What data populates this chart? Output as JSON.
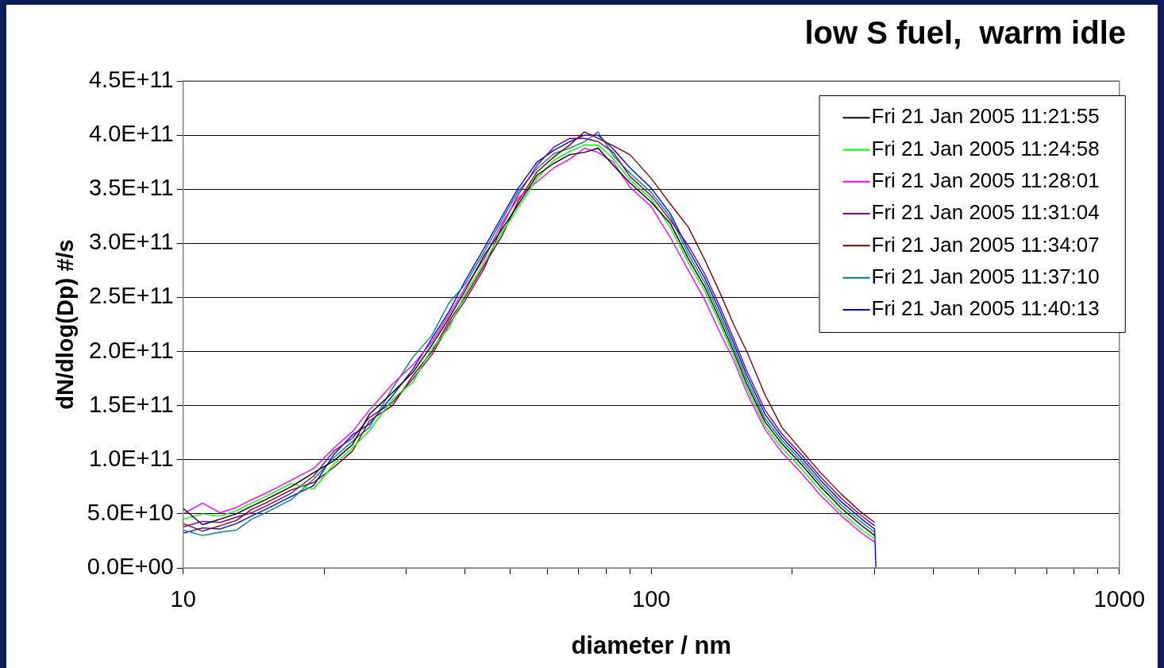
{
  "chart_data": {
    "type": "line",
    "title": "low S fuel,  warm idle",
    "xlabel": "diameter / nm",
    "ylabel": "dN/dlog(Dp) #/s",
    "x": [
      10,
      11,
      12,
      13,
      14,
      15,
      17,
      19,
      21,
      23,
      25,
      28,
      31,
      34,
      37,
      40,
      44,
      48,
      52,
      57,
      62,
      67,
      72,
      77,
      83,
      90,
      100,
      110,
      120,
      130,
      140,
      150,
      160,
      175,
      190,
      210,
      230,
      255,
      280,
      300,
      302
    ],
    "series": [
      {
        "name": "Fri 21 Jan 2005 11:21:55",
        "color": "#000000",
        "values": [
          55000000000.0,
          40000000000.0,
          45000000000.0,
          50000000000.0,
          57000000000.0,
          63000000000.0,
          75000000000.0,
          88000000000.0,
          99000000000.0,
          114000000000.0,
          142000000000.0,
          162000000000.0,
          181000000000.0,
          206000000000.0,
          231000000000.0,
          256000000000.0,
          289000000000.0,
          313000000000.0,
          336000000000.0,
          363000000000.0,
          374000000000.0,
          382000000000.0,
          384000000000.0,
          388000000000.0,
          372000000000.0,
          356000000000.0,
          338000000000.0,
          318000000000.0,
          286000000000.0,
          260000000000.0,
          230000000000.0,
          200000000000.0,
          170000000000.0,
          135000000000.0,
          115000000000.0,
          95000000000.0,
          75000000000.0,
          55000000000.0,
          40000000000.0,
          30000000000.0,
          null
        ]
      },
      {
        "name": "Fri 21 Jan 2005 11:24:58",
        "color": "#00ff00",
        "values": [
          45000000000.0,
          50000000000.0,
          48000000000.0,
          53000000000.0,
          60000000000.0,
          66000000000.0,
          78000000000.0,
          73000000000.0,
          96000000000.0,
          111000000000.0,
          127000000000.0,
          156000000000.0,
          172000000000.0,
          203000000000.0,
          222000000000.0,
          253000000000.0,
          283000000000.0,
          310000000000.0,
          333000000000.0,
          360000000000.0,
          377000000000.0,
          385000000000.0,
          391000000000.0,
          391000000000.0,
          378000000000.0,
          359000000000.0,
          341000000000.0,
          314000000000.0,
          282000000000.0,
          256000000000.0,
          226000000000.0,
          196000000000.0,
          166000000000.0,
          131000000000.0,
          111000000000.0,
          91000000000.0,
          71000000000.0,
          51000000000.0,
          36000000000.0,
          27000000000.0,
          null
        ]
      },
      {
        "name": "Fri 21 Jan 2005 11:28:01",
        "color": "#ff00ff",
        "values": [
          50000000000.0,
          60000000000.0,
          51000000000.0,
          56000000000.0,
          63000000000.0,
          69000000000.0,
          81000000000.0,
          92000000000.0,
          111000000000.0,
          126000000000.0,
          146000000000.0,
          170000000000.0,
          188000000000.0,
          209000000000.0,
          234000000000.0,
          259000000000.0,
          286000000000.0,
          319000000000.0,
          342000000000.0,
          357000000000.0,
          370000000000.0,
          378000000000.0,
          388000000000.0,
          384000000000.0,
          375000000000.0,
          352000000000.0,
          334000000000.0,
          305000000000.0,
          275000000000.0,
          248000000000.0,
          218000000000.0,
          192000000000.0,
          162000000000.0,
          128000000000.0,
          107000000000.0,
          87000000000.0,
          67000000000.0,
          48000000000.0,
          33000000000.0,
          24000000000.0,
          null
        ]
      },
      {
        "name": "Fri 21 Jan 2005 11:31:04",
        "color": "#800080",
        "values": [
          38000000000.0,
          43000000000.0,
          42000000000.0,
          47000000000.0,
          51000000000.0,
          57000000000.0,
          69000000000.0,
          85000000000.0,
          108000000000.0,
          120000000000.0,
          139000000000.0,
          153000000000.0,
          175000000000.0,
          197000000000.0,
          225000000000.0,
          247000000000.0,
          277000000000.0,
          316000000000.0,
          345000000000.0,
          372000000000.0,
          389000000000.0,
          397000000000.0,
          397000000000.0,
          394000000000.0,
          384000000000.0,
          362000000000.0,
          344000000000.0,
          321000000000.0,
          298000000000.0,
          272000000000.0,
          242000000000.0,
          212000000000.0,
          182000000000.0,
          146000000000.0,
          124000000000.0,
          104000000000.0,
          84000000000.0,
          64000000000.0,
          49000000000.0,
          39000000000.0,
          null
        ]
      },
      {
        "name": "Fri 21 Jan 2005 11:34:07",
        "color": "#800000",
        "values": [
          41000000000.0,
          34000000000.0,
          39000000000.0,
          44000000000.0,
          54000000000.0,
          60000000000.0,
          72000000000.0,
          79000000000.0,
          93000000000.0,
          108000000000.0,
          136000000000.0,
          150000000000.0,
          178000000000.0,
          200000000000.0,
          228000000000.0,
          250000000000.0,
          280000000000.0,
          307000000000.0,
          339000000000.0,
          366000000000.0,
          380000000000.0,
          391000000000.0,
          403000000000.0,
          397000000000.0,
          390000000000.0,
          382000000000.0,
          360000000000.0,
          336000000000.0,
          315000000000.0,
          285000000000.0,
          255000000000.0,
          225000000000.0,
          200000000000.0,
          160000000000.0,
          130000000000.0,
          108000000000.0,
          88000000000.0,
          68000000000.0,
          52000000000.0,
          42000000000.0,
          null
        ]
      },
      {
        "name": "Fri 21 Jan 2005 11:37:10",
        "color": "#008080",
        "values": [
          35000000000.0,
          30000000000.0,
          33000000000.0,
          35000000000.0,
          45000000000.0,
          51000000000.0,
          63000000000.0,
          82000000000.0,
          102000000000.0,
          117000000000.0,
          130000000000.0,
          166000000000.0,
          195000000000.0,
          215000000000.0,
          245000000000.0,
          262000000000.0,
          292000000000.0,
          322000000000.0,
          348000000000.0,
          369000000000.0,
          383000000000.0,
          388000000000.0,
          394000000000.0,
          403000000000.0,
          381000000000.0,
          365000000000.0,
          347000000000.0,
          324000000000.0,
          290000000000.0,
          264000000000.0,
          234000000000.0,
          204000000000.0,
          174000000000.0,
          138000000000.0,
          118000000000.0,
          98000000000.0,
          78000000000.0,
          58000000000.0,
          43000000000.0,
          33000000000.0,
          null
        ]
      },
      {
        "name": "Fri 21 Jan 2005 11:40:13",
        "color": "#0000ff",
        "values": [
          32000000000.0,
          37000000000.0,
          36000000000.0,
          41000000000.0,
          48000000000.0,
          54000000000.0,
          66000000000.0,
          76000000000.0,
          105000000000.0,
          123000000000.0,
          133000000000.0,
          159000000000.0,
          184000000000.0,
          212000000000.0,
          237000000000.0,
          265000000000.0,
          296000000000.0,
          325000000000.0,
          351000000000.0,
          375000000000.0,
          386000000000.0,
          394000000000.0,
          400000000000.0,
          400000000000.0,
          387000000000.0,
          370000000000.0,
          351000000000.0,
          327000000000.0,
          294000000000.0,
          268000000000.0,
          238000000000.0,
          208000000000.0,
          178000000000.0,
          142000000000.0,
          121000000000.0,
          101000000000.0,
          81000000000.0,
          61000000000.0,
          46000000000.0,
          36000000000.0,
          0
        ]
      }
    ],
    "log": "x",
    "xlim": [
      10,
      1000
    ],
    "xticks": [
      10,
      {
        "value": 20,
        "label": null
      },
      {
        "value": 30,
        "label": null
      },
      {
        "value": 40,
        "label": null
      },
      {
        "value": 50,
        "label": null
      },
      {
        "value": 60,
        "label": null
      },
      {
        "value": 70,
        "label": null
      },
      {
        "value": 80,
        "label": null
      },
      {
        "value": 90,
        "label": null
      },
      100,
      {
        "value": 200,
        "label": null
      },
      {
        "value": 300,
        "label": null
      },
      {
        "value": 400,
        "label": null
      },
      {
        "value": 500,
        "label": null
      },
      {
        "value": 600,
        "label": null
      },
      {
        "value": 700,
        "label": null
      },
      {
        "value": 800,
        "label": null
      },
      {
        "value": 900,
        "label": null
      },
      1000
    ],
    "ylim": [
      0,
      450000000000.0
    ],
    "yticks": [
      {
        "value": 0,
        "label": "0.0E+00"
      },
      {
        "value": 50000000000.0,
        "label": "5.0E+10"
      },
      {
        "value": 100000000000.0,
        "label": "1.0E+11"
      },
      {
        "value": 150000000000.0,
        "label": "1.5E+11"
      },
      {
        "value": 200000000000.0,
        "label": "2.0E+11"
      },
      {
        "value": 250000000000.0,
        "label": "2.5E+11"
      },
      {
        "value": 300000000000.0,
        "label": "3.0E+11"
      },
      {
        "value": 350000000000.0,
        "label": "3.5E+11"
      },
      {
        "value": 400000000000.0,
        "label": "4.0E+11"
      },
      {
        "value": 450000000000.0,
        "label": "4.5E+11"
      }
    ],
    "grid": "y",
    "legend": "top right",
    "marker": "none",
    "line_style": "solid"
  }
}
